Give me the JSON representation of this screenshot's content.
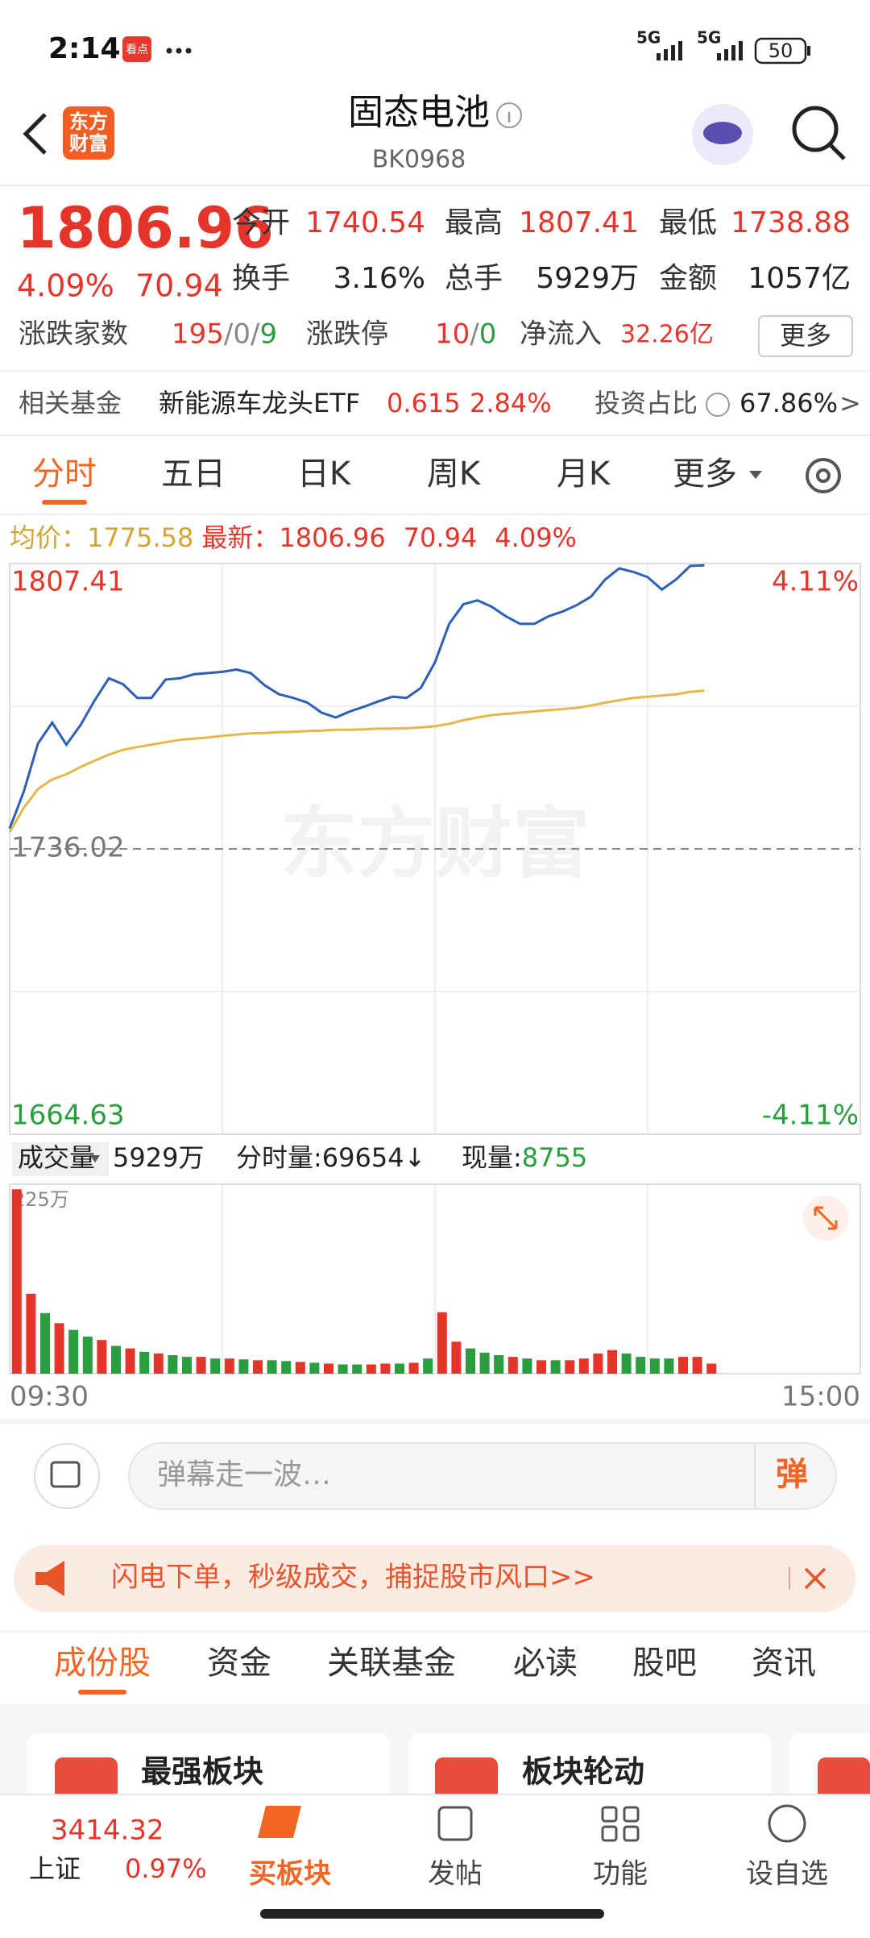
{
  "status": {
    "time": "2:14",
    "app_badge": "看点",
    "net": [
      "5G",
      "5G"
    ],
    "battery": "50"
  },
  "header": {
    "logo": [
      "东方",
      "财富"
    ],
    "title": "固态电池",
    "code": "BK0968"
  },
  "quote": {
    "price": "1806.96",
    "change_pct": "4.09%",
    "change": "70.94",
    "stats": [
      {
        "label": "今开",
        "value": "1740.54"
      },
      {
        "label": "最高",
        "value": "1807.41"
      },
      {
        "label": "最低",
        "value": "1738.88"
      },
      {
        "label": "换手",
        "value": "3.16%"
      },
      {
        "label": "总手",
        "value": "5929万"
      },
      {
        "label": "金额",
        "value": "1057亿"
      }
    ],
    "breadth": {
      "label": "涨跌家数",
      "counts": [
        "195",
        "0",
        "9"
      ],
      "sep": "/",
      "limit_label": "涨跌停",
      "limits": [
        "10",
        "0"
      ],
      "inflow_label": "净流入",
      "inflow": "32.26亿",
      "button": "更多"
    }
  },
  "fund": {
    "label": "相关基金",
    "name": "新能源车龙头ETF",
    "price": "0.615",
    "pct": "2.84%",
    "ratio_label": "投资占比",
    "ratio": "67.86%",
    "arrow": ">"
  },
  "tabs": [
    "分时",
    "五日",
    "日K",
    "周K",
    "月K",
    "更多"
  ],
  "info": {
    "avg_label": "均价：",
    "avg": "1775.58",
    "last_label": "最新：",
    "last": "1806.96",
    "change": "70.94",
    "pct": "4.09%"
  },
  "chart_data": [
    {
      "type": "line",
      "watermark": "东方财富",
      "grid": true,
      "ylim": [
        1664.63,
        1807.41
      ],
      "yticks": [
        1807.41,
        1736.02,
        1664.63
      ],
      "y2lim": [
        -4.11,
        4.11
      ],
      "y2ticks": [
        {
          "value": 4.11,
          "label": "4.11%"
        },
        {
          "value": -4.11,
          "label": "-4.11%"
        }
      ],
      "series": [
        {
          "color": "#2d5fb5",
          "values": [
            1741.1,
            1750.4,
            1762.4,
            1767.6,
            1762.1,
            1767.0,
            1773.2,
            1778.7,
            1777.2,
            1773.8,
            1773.8,
            1778.4,
            1778.7,
            1779.7,
            1780.0,
            1780.3,
            1780.9,
            1780.0,
            1776.9,
            1774.7,
            1773.8,
            1772.6,
            1770.1,
            1768.9,
            1770.4,
            1771.6,
            1772.9,
            1774.1,
            1773.8,
            1776.3,
            1782.7,
            1792.3,
            1797.2,
            1798.2,
            1796.6,
            1794.2,
            1792.3,
            1792.3,
            1794.2,
            1795.4,
            1797.0,
            1799.1,
            1803.4,
            1806.2,
            1805.3,
            1804.0,
            1800.9,
            1803.4,
            1806.8,
            1806.96
          ]
        },
        {
          "color": "#e6b84a",
          "values": [
            1740.2,
            1746.3,
            1751.0,
            1753.4,
            1754.7,
            1756.5,
            1758.1,
            1759.6,
            1760.8,
            1761.5,
            1762.1,
            1762.7,
            1763.3,
            1763.6,
            1763.9,
            1764.3,
            1764.6,
            1764.9,
            1765.0,
            1765.2,
            1765.3,
            1765.5,
            1765.6,
            1765.8,
            1765.8,
            1765.9,
            1766.1,
            1766.1,
            1766.2,
            1766.4,
            1766.7,
            1767.3,
            1768.2,
            1768.9,
            1769.5,
            1769.8,
            1770.1,
            1770.4,
            1770.7,
            1771.0,
            1771.3,
            1771.9,
            1772.6,
            1773.2,
            1773.8,
            1774.1,
            1774.4,
            1774.7,
            1775.3,
            1775.58
          ]
        }
      ]
    },
    {
      "type": "bar",
      "ylim": [
        0,
        225
      ],
      "yticks": [
        {
          "value": 225,
          "label": "225万"
        }
      ],
      "x_labels": [
        "09:30",
        "15:00"
      ],
      "values": [
        219,
        95,
        72,
        60,
        52,
        44,
        40,
        33,
        30,
        26,
        24,
        22,
        20,
        20,
        18,
        18,
        17,
        16,
        16,
        15,
        14,
        13,
        12,
        11,
        11,
        11,
        12,
        12,
        13,
        18,
        73,
        38,
        30,
        25,
        22,
        20,
        18,
        16,
        16,
        16,
        18,
        24,
        28,
        24,
        20,
        18,
        18,
        20,
        20,
        12
      ],
      "colors": [
        "#e5352b",
        "#e5352b",
        "#2a9d3f",
        "#e5352b",
        "#2a9d3f",
        "#2a9d3f",
        "#e5352b",
        "#2a9d3f",
        "#e5352b",
        "#2a9d3f",
        "#e5352b",
        "#2a9d3f",
        "#2a9d3f",
        "#e5352b",
        "#2a9d3f",
        "#e5352b",
        "#2a9d3f",
        "#e5352b",
        "#2a9d3f",
        "#2a9d3f",
        "#e5352b",
        "#2a9d3f",
        "#e5352b",
        "#2a9d3f",
        "#2a9d3f",
        "#e5352b",
        "#e5352b",
        "#2a9d3f",
        "#e5352b",
        "#2a9d3f",
        "#e5352b",
        "#e5352b",
        "#2a9d3f",
        "#2a9d3f",
        "#2a9d3f",
        "#e5352b",
        "#2a9d3f",
        "#e5352b",
        "#2a9d3f",
        "#e5352b",
        "#e5352b",
        "#e5352b",
        "#e5352b",
        "#2a9d3f",
        "#2a9d3f",
        "#2a9d3f",
        "#2a9d3f",
        "#e5352b",
        "#e5352b",
        "#e5352b"
      ]
    }
  ],
  "volume_info": {
    "label": "成交量",
    "total": "5929万",
    "fen_label": "分时量:",
    "fen": "69654",
    "arrow": "↓",
    "now_label": "现量:",
    "now": "8755"
  },
  "comment": {
    "placeholder": "弹幕走一波…",
    "button": "弹"
  },
  "promo": "闪电下单，秒级成交，捕捉股市风口>>",
  "section_tabs": [
    "成份股",
    "资金",
    "关联基金",
    "必读",
    "股吧",
    "资讯"
  ],
  "cards": [
    "最强板块",
    "板块轮动"
  ],
  "nav": {
    "index": {
      "value": "3414.32",
      "name": "上证",
      "pct": "0.97%"
    },
    "items": [
      "买板块",
      "发帖",
      "功能",
      "设自选"
    ]
  }
}
